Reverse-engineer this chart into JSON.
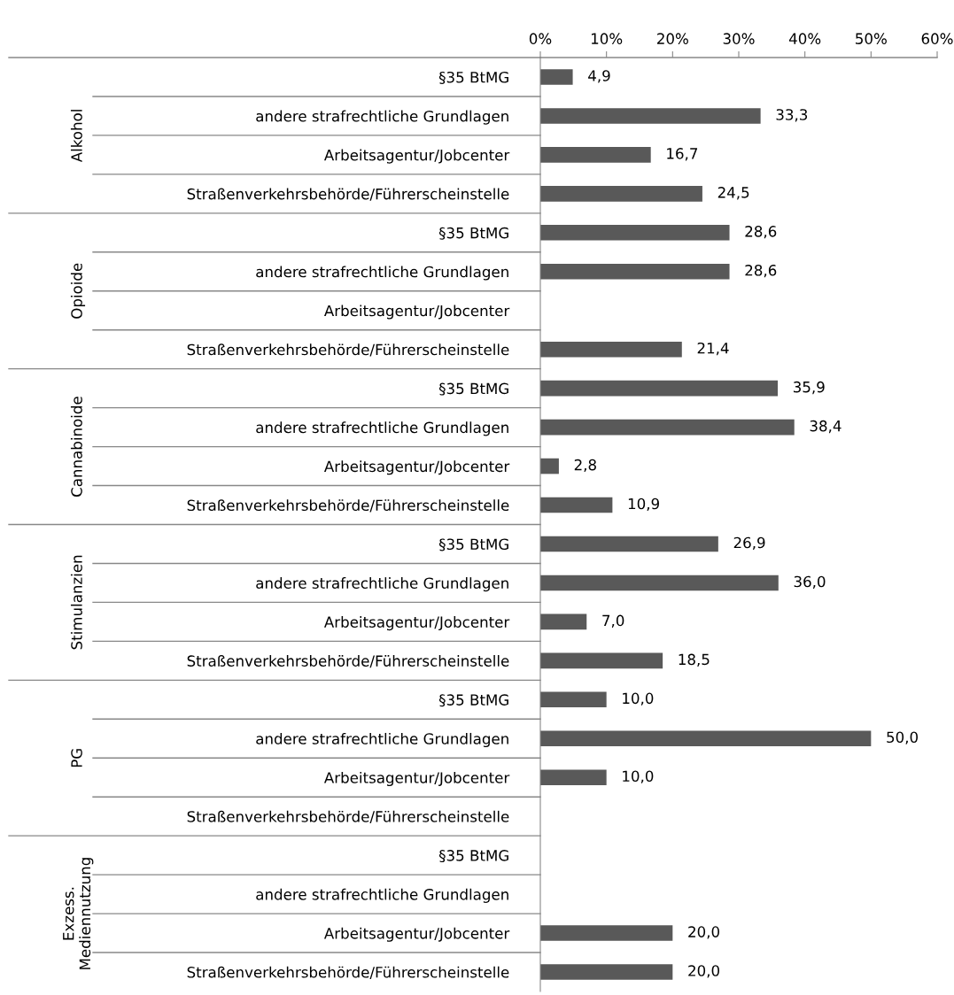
{
  "chart_data": {
    "type": "bar",
    "orientation": "horizontal",
    "color": "#595959",
    "categories": [
      "§35 BtMG",
      "andere strafrechtliche Grundlagen",
      "Arbeitsagentur/Jobcenter",
      "Straßenverkehrsbehörde/Führerscheinstelle",
      "§35 BtMG",
      "andere strafrechtliche Grundlagen",
      "Arbeitsagentur/Jobcenter",
      "Straßenverkehrsbehörde/Führerscheinstelle",
      "§35 BtMG",
      "andere strafrechtliche Grundlagen",
      "Arbeitsagentur/Jobcenter",
      "Straßenverkehrsbehörde/Führerscheinstelle",
      "§35 BtMG",
      "andere strafrechtliche Grundlagen",
      "Arbeitsagentur/Jobcenter",
      "Straßenverkehrsbehörde/Führerscheinstelle",
      "§35 BtMG",
      "andere strafrechtliche Grundlagen",
      "Arbeitsagentur/Jobcenter",
      "Straßenverkehrsbehörde/Führerscheinstelle",
      "§35 BtMG",
      "andere strafrechtliche Grundlagen",
      "Arbeitsagentur/Jobcenter",
      "Straßenverkehrsbehörde/Führerscheinstelle"
    ],
    "values": [
      4.9,
      33.3,
      16.7,
      24.5,
      28.6,
      28.6,
      null,
      21.4,
      35.9,
      38.4,
      2.8,
      10.9,
      26.9,
      36.0,
      7.0,
      18.5,
      10.0,
      50.0,
      10.0,
      null,
      null,
      null,
      20.0,
      20.0
    ],
    "value_labels": [
      "4,9",
      "33,3",
      "16,7",
      "24,5",
      "28,6",
      "28,6",
      null,
      "21,4",
      "35,9",
      "38,4",
      "2,8",
      "10,9",
      "26,9",
      "36,0",
      "7,0",
      "18,5",
      "10,0",
      "50,0",
      "10,0",
      null,
      null,
      null,
      "20,0",
      "20,0"
    ],
    "annotations": [
      "Alkohol",
      "Opioide",
      "Cannabinoide",
      "Stimulanzien",
      "PG",
      "Exzess.\nMediennutzung"
    ],
    "xlim": [
      0,
      60
    ],
    "xticks": [
      {
        "value": 0,
        "label": "0%"
      },
      {
        "value": 10,
        "label": "10%"
      },
      {
        "value": 20,
        "label": "20%"
      },
      {
        "value": 30,
        "label": "30%"
      },
      {
        "value": 40,
        "label": "40%"
      },
      {
        "value": 50,
        "label": "50%"
      },
      {
        "value": 60,
        "label": "60%"
      }
    ],
    "grid": false
  }
}
